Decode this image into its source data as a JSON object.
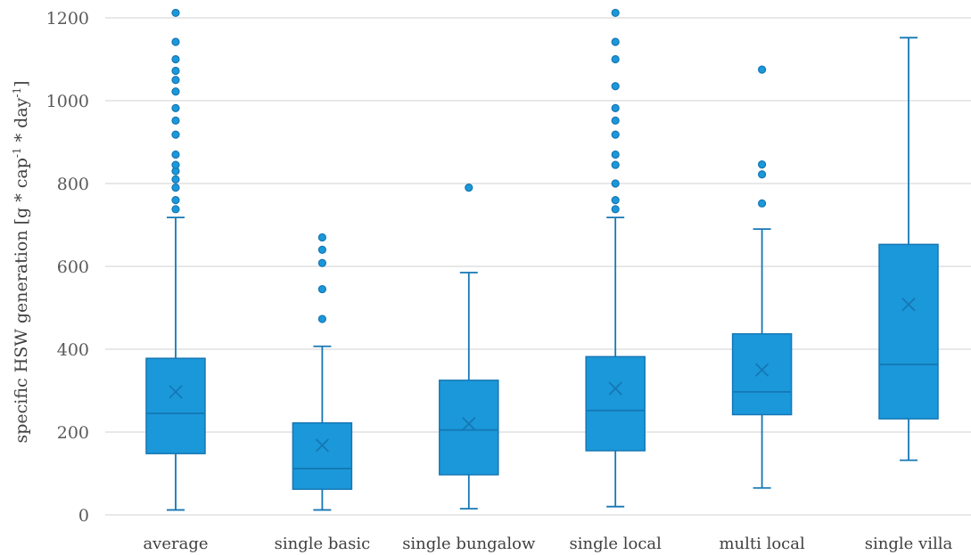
{
  "chart_data": {
    "type": "box",
    "ylabel": "specific HSW  generation [g * cap-1 * day-1]",
    "ylabel_parts": {
      "before": "specific HSW  generation [g * cap",
      "sup1": "-1",
      "middle": " * day",
      "sup2": "-1",
      "after": "]"
    },
    "ylim": [
      0,
      1200
    ],
    "yticks": [
      0,
      200,
      400,
      600,
      800,
      1000,
      1200
    ],
    "grid": true,
    "colors": {
      "box": "#1b98d9",
      "line": "#1577b5",
      "grid": "#d9d9d9"
    },
    "categories": [
      "average",
      "single basic",
      "single bungalow",
      "single local",
      "multi local",
      "single villa"
    ],
    "boxes": [
      {
        "name": "average",
        "min": 12,
        "q1": 148,
        "median": 245,
        "q3": 378,
        "max": 718,
        "mean": 297,
        "outliers": [
          738,
          760,
          790,
          810,
          830,
          845,
          870,
          918,
          952,
          982,
          1022,
          1050,
          1072,
          1100,
          1142,
          1212
        ]
      },
      {
        "name": "single basic",
        "min": 12,
        "q1": 62,
        "median": 112,
        "q3": 222,
        "max": 407,
        "mean": 168,
        "outliers": [
          473,
          545,
          608,
          640,
          670
        ]
      },
      {
        "name": "single bungalow",
        "min": 15,
        "q1": 97,
        "median": 205,
        "q3": 325,
        "max": 585,
        "mean": 220,
        "outliers": [
          790
        ]
      },
      {
        "name": "single local",
        "min": 20,
        "q1": 155,
        "median": 252,
        "q3": 382,
        "max": 718,
        "mean": 305,
        "outliers": [
          738,
          760,
          800,
          845,
          870,
          918,
          952,
          982,
          1035,
          1100,
          1142,
          1212
        ]
      },
      {
        "name": "multi local",
        "min": 65,
        "q1": 242,
        "median": 297,
        "q3": 437,
        "max": 690,
        "mean": 350,
        "outliers": [
          752,
          822,
          846,
          1075
        ]
      },
      {
        "name": "single villa",
        "min": 132,
        "q1": 232,
        "median": 363,
        "q3": 653,
        "max": 1152,
        "mean": 508,
        "outliers": []
      }
    ]
  }
}
